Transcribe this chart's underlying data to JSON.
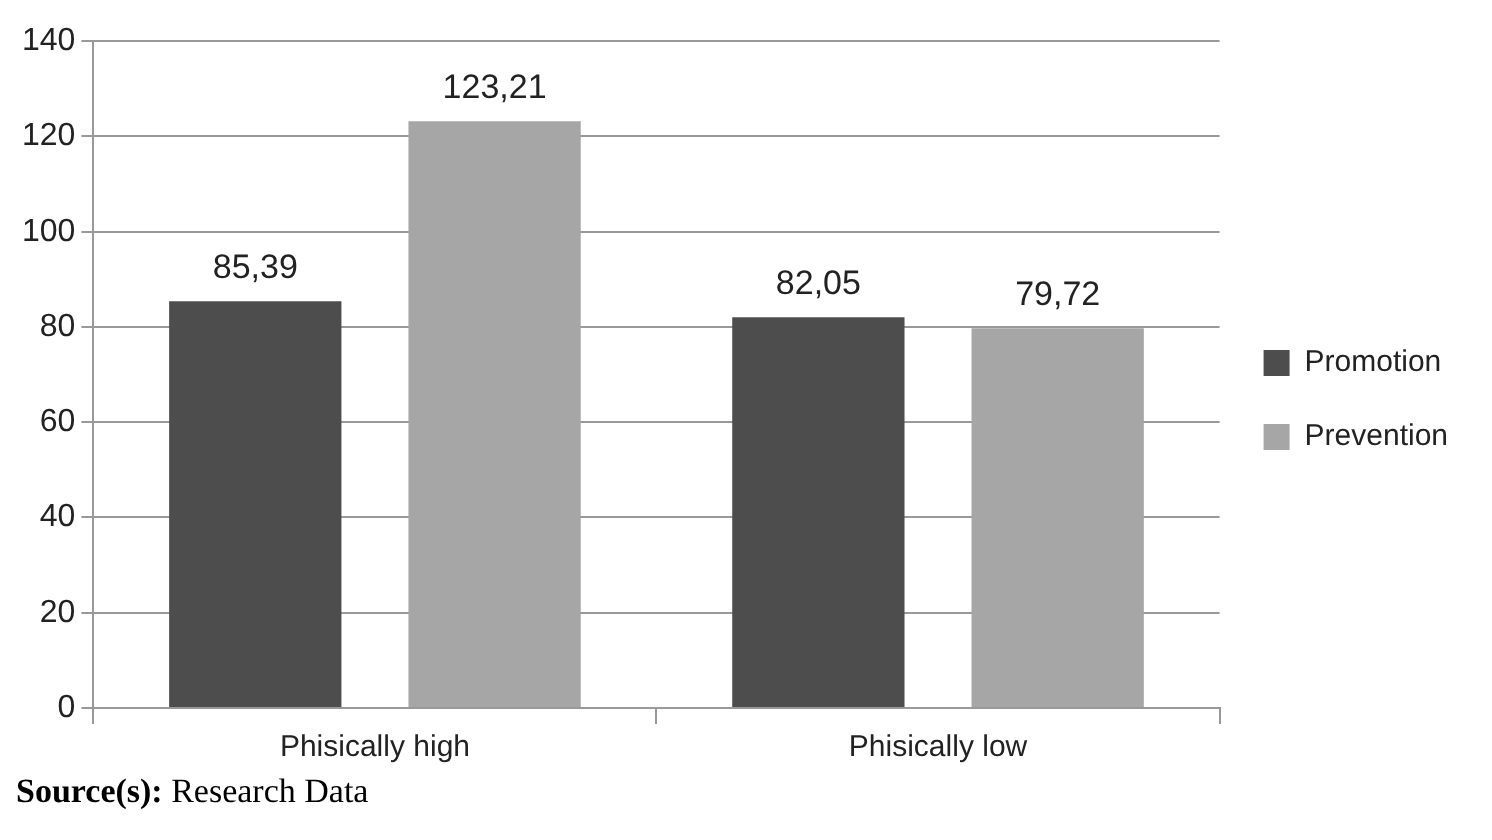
{
  "chart_data": {
    "type": "bar",
    "categories": [
      "Phisically high",
      "Phisically low"
    ],
    "series": [
      {
        "name": "Promotion",
        "color": "#4d4d4d",
        "values": [
          85.39,
          82.05
        ],
        "value_labels": [
          "85,39",
          "82,05"
        ]
      },
      {
        "name": "Prevention",
        "color": "#a6a6a6",
        "values": [
          123.21,
          79.72
        ],
        "value_labels": [
          "123,21",
          "79,72"
        ]
      }
    ],
    "ylim": [
      0,
      140
    ],
    "yticks": [
      0,
      20,
      40,
      60,
      80,
      100,
      120,
      140
    ],
    "grid": "y",
    "legend": "right",
    "annotations": [
      "Source(s): Research Data"
    ]
  }
}
